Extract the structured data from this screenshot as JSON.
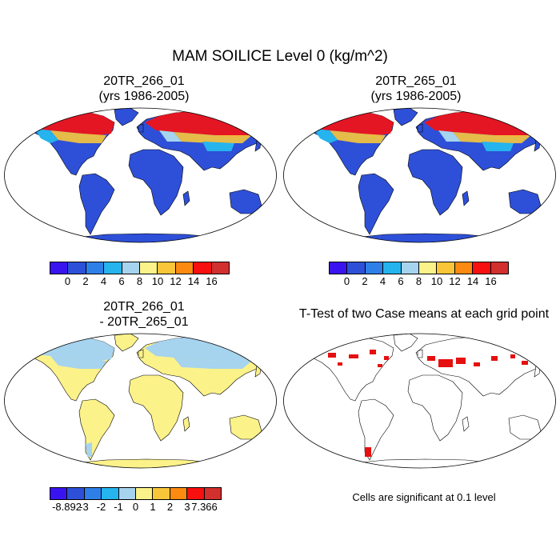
{
  "figure": {
    "title": "MAM SOILICE Level 0 (kg/m^2)",
    "panels": [
      {
        "title_line1": "20TR_266_01",
        "title_line2": "(yrs 1986-2005)"
      },
      {
        "title_line1": "20TR_265_01",
        "title_line2": "(yrs 1986-2005)"
      },
      {
        "title_line1": "20TR_266_01",
        "title_line2": "- 20TR_265_01"
      },
      {
        "title_line1": "T-Test of two Case means at each grid point"
      }
    ],
    "significance_note": "Cells are significant at 0.1 level"
  },
  "colorbars": {
    "main": {
      "colors": [
        "#3a14f0",
        "#2e50d8",
        "#2f7fe9",
        "#25b4ee",
        "#a6d3ee",
        "#fcf28a",
        "#f9c63a",
        "#fc8a10",
        "#f80f0f",
        "#d22f2f"
      ],
      "labels": [
        "0",
        "2",
        "4",
        "6",
        "8",
        "10",
        "12",
        "14",
        "16"
      ]
    },
    "diff": {
      "colors": [
        "#3a14f0",
        "#2e50d8",
        "#2f7fe9",
        "#25b4ee",
        "#a6d3ee",
        "#fcf28a",
        "#f9c63a",
        "#fc8a10",
        "#f80f0f",
        "#d22f2f"
      ],
      "labels": [
        "-8.892",
        "-3",
        "-2",
        "-1",
        "0",
        "1",
        "2",
        "3",
        "7.366"
      ]
    }
  },
  "colors": {
    "ocean": "#ffffff",
    "land_low": "#2e50d8",
    "diff_land": "#fcf28a",
    "diff_cold": "#a6d3ee",
    "significant": "#e51010"
  }
}
